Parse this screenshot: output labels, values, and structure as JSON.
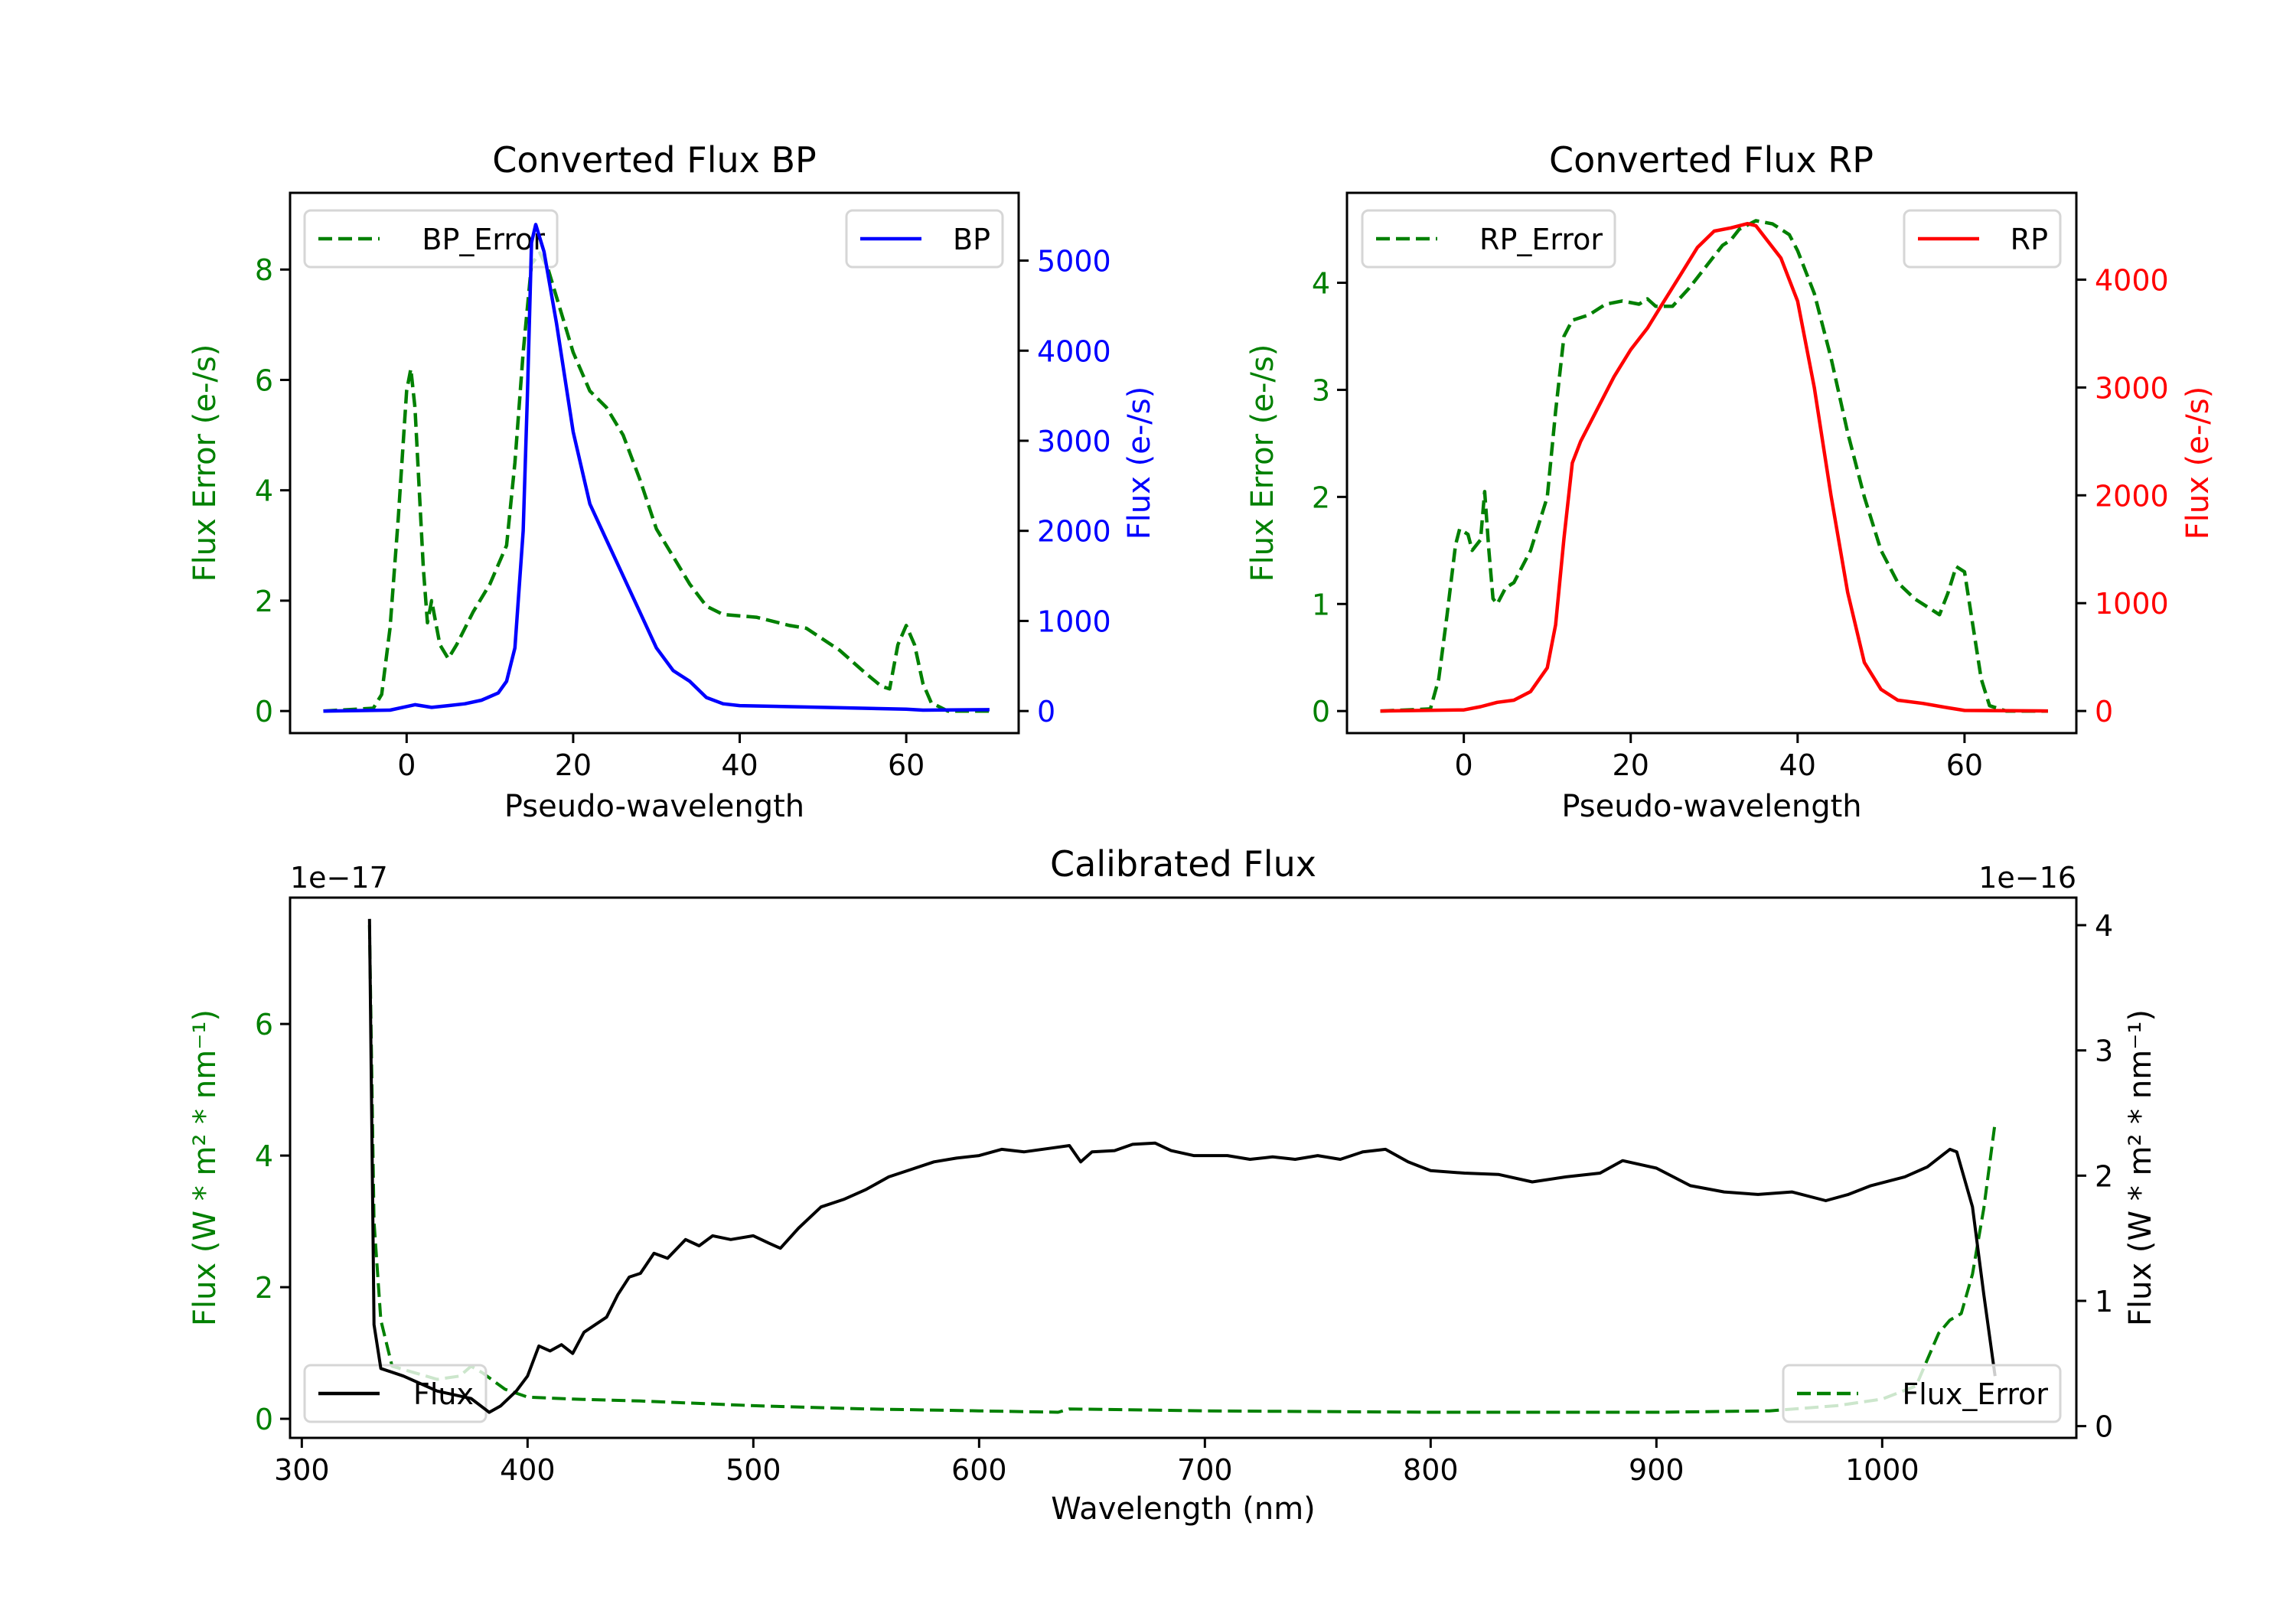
{
  "colors": {
    "green": "#008000",
    "blue": "#0000ff",
    "red": "#ff0000",
    "black": "#000000"
  },
  "chart_data": [
    {
      "type": "line",
      "title": "Converted Flux BP",
      "xlabel": "Pseudo-wavelength",
      "ylabel": "Flux Error (e-/s)",
      "ylabel_right": "Flux (e-/s)",
      "xlim": [
        -14,
        73.5
      ],
      "ylim": [
        -0.4,
        9.39
      ],
      "ylim_right": [
        -245,
        5752
      ],
      "xticks": [
        0,
        20,
        40,
        60
      ],
      "yticks": [
        0,
        2,
        4,
        6,
        8
      ],
      "yticks_right": [
        0,
        1000,
        2000,
        3000,
        4000,
        5000
      ],
      "legend_left": {
        "label": "BP_Error",
        "placement": "upper left"
      },
      "legend_right": {
        "label": "BP",
        "placement": "upper right"
      },
      "series_left": {
        "name": "BP_Error",
        "color": "#008000",
        "style": "dashed",
        "points": [
          [
            -10,
            0
          ],
          [
            -4,
            0.05
          ],
          [
            -3,
            0.3
          ],
          [
            -2,
            1.5
          ],
          [
            -1,
            3.5
          ],
          [
            0,
            5.8
          ],
          [
            0.5,
            6.2
          ],
          [
            1,
            5.5
          ],
          [
            2,
            2.6
          ],
          [
            2.5,
            1.6
          ],
          [
            3,
            2.0
          ],
          [
            4,
            1.2
          ],
          [
            5,
            0.95
          ],
          [
            6,
            1.2
          ],
          [
            8,
            1.8
          ],
          [
            10,
            2.3
          ],
          [
            12,
            3.0
          ],
          [
            13,
            4.5
          ],
          [
            14,
            6.5
          ],
          [
            15,
            8.1
          ],
          [
            16,
            8.3
          ],
          [
            17,
            8.0
          ],
          [
            18,
            7.5
          ],
          [
            20,
            6.5
          ],
          [
            22,
            5.8
          ],
          [
            24,
            5.5
          ],
          [
            26,
            5.0
          ],
          [
            28,
            4.2
          ],
          [
            30,
            3.3
          ],
          [
            32,
            2.8
          ],
          [
            34,
            2.3
          ],
          [
            36,
            1.9
          ],
          [
            38,
            1.75
          ],
          [
            42,
            1.7
          ],
          [
            46,
            1.55
          ],
          [
            48,
            1.5
          ],
          [
            52,
            1.1
          ],
          [
            55,
            0.7
          ],
          [
            57,
            0.45
          ],
          [
            58,
            0.4
          ],
          [
            59,
            1.2
          ],
          [
            60,
            1.55
          ],
          [
            61,
            1.2
          ],
          [
            62,
            0.5
          ],
          [
            63,
            0.15
          ],
          [
            65,
            0
          ],
          [
            70,
            0
          ]
        ]
      },
      "series_right": {
        "name": "BP",
        "color": "#0000ff",
        "style": "solid",
        "points": [
          [
            -10,
            0
          ],
          [
            -2,
            10
          ],
          [
            0,
            50
          ],
          [
            1,
            70
          ],
          [
            3,
            40
          ],
          [
            5,
            60
          ],
          [
            7,
            80
          ],
          [
            9,
            120
          ],
          [
            11,
            200
          ],
          [
            12,
            330
          ],
          [
            13,
            700
          ],
          [
            14,
            2000
          ],
          [
            14.5,
            3500
          ],
          [
            15,
            5200
          ],
          [
            15.5,
            5400
          ],
          [
            16.5,
            5100
          ],
          [
            18,
            4300
          ],
          [
            20,
            3100
          ],
          [
            22,
            2300
          ],
          [
            24,
            1900
          ],
          [
            26,
            1500
          ],
          [
            28,
            1100
          ],
          [
            30,
            700
          ],
          [
            32,
            450
          ],
          [
            34,
            330
          ],
          [
            36,
            150
          ],
          [
            38,
            80
          ],
          [
            40,
            60
          ],
          [
            50,
            40
          ],
          [
            60,
            20
          ],
          [
            62,
            10
          ],
          [
            70,
            15
          ]
        ]
      }
    },
    {
      "type": "line",
      "title": "Converted Flux RP",
      "xlabel": "Pseudo-wavelength",
      "ylabel": "Flux Error (e-/s)",
      "ylabel_right": "Flux (e-/s)",
      "xlim": [
        -14,
        73.4
      ],
      "ylim": [
        -0.206,
        4.84
      ],
      "ylim_right": [
        -205,
        4805
      ],
      "xticks": [
        0,
        20,
        40,
        60
      ],
      "yticks": [
        0,
        1,
        2,
        3,
        4
      ],
      "yticks_right": [
        0,
        1000,
        2000,
        3000,
        4000
      ],
      "legend_left": {
        "label": "RP_Error",
        "placement": "upper left"
      },
      "legend_right": {
        "label": "RP",
        "placement": "upper right"
      },
      "series_left": {
        "name": "RP_Error",
        "color": "#008000",
        "style": "dashed",
        "points": [
          [
            -10,
            0
          ],
          [
            -4,
            0.02
          ],
          [
            -3,
            0.3
          ],
          [
            -2,
            0.9
          ],
          [
            -1,
            1.55
          ],
          [
            -0.5,
            1.7
          ],
          [
            0.5,
            1.65
          ],
          [
            1,
            1.5
          ],
          [
            2,
            1.6
          ],
          [
            2.5,
            2.05
          ],
          [
            3,
            1.5
          ],
          [
            3.5,
            1.05
          ],
          [
            4,
            1.0
          ],
          [
            5,
            1.15
          ],
          [
            6,
            1.2
          ],
          [
            8,
            1.5
          ],
          [
            10,
            2.0
          ],
          [
            11,
            2.8
          ],
          [
            12,
            3.5
          ],
          [
            13,
            3.65
          ],
          [
            15,
            3.7
          ],
          [
            17,
            3.8
          ],
          [
            19,
            3.83
          ],
          [
            21,
            3.8
          ],
          [
            22,
            3.85
          ],
          [
            23,
            3.78
          ],
          [
            25,
            3.78
          ],
          [
            27,
            3.95
          ],
          [
            29,
            4.15
          ],
          [
            31,
            4.35
          ],
          [
            32,
            4.4
          ],
          [
            33,
            4.5
          ],
          [
            35,
            4.58
          ],
          [
            37,
            4.55
          ],
          [
            39,
            4.45
          ],
          [
            40,
            4.3
          ],
          [
            42,
            3.9
          ],
          [
            44,
            3.3
          ],
          [
            46,
            2.6
          ],
          [
            48,
            2.0
          ],
          [
            50,
            1.5
          ],
          [
            52,
            1.2
          ],
          [
            54,
            1.05
          ],
          [
            56,
            0.95
          ],
          [
            57,
            0.9
          ],
          [
            58,
            1.1
          ],
          [
            59,
            1.35
          ],
          [
            60,
            1.3
          ],
          [
            61,
            0.8
          ],
          [
            62,
            0.3
          ],
          [
            63,
            0.05
          ],
          [
            65,
            0
          ],
          [
            70,
            0
          ]
        ]
      },
      "series_right": {
        "name": "RP",
        "color": "#ff0000",
        "style": "solid",
        "points": [
          [
            -10,
            0
          ],
          [
            0,
            10
          ],
          [
            2,
            40
          ],
          [
            4,
            80
          ],
          [
            6,
            100
          ],
          [
            8,
            180
          ],
          [
            10,
            400
          ],
          [
            11,
            800
          ],
          [
            12,
            1600
          ],
          [
            13,
            2300
          ],
          [
            14,
            2500
          ],
          [
            16,
            2800
          ],
          [
            18,
            3100
          ],
          [
            20,
            3350
          ],
          [
            22,
            3550
          ],
          [
            24,
            3800
          ],
          [
            26,
            4050
          ],
          [
            28,
            4300
          ],
          [
            30,
            4450
          ],
          [
            32,
            4480
          ],
          [
            34,
            4520
          ],
          [
            35,
            4500
          ],
          [
            36,
            4400
          ],
          [
            38,
            4200
          ],
          [
            40,
            3800
          ],
          [
            42,
            3000
          ],
          [
            44,
            2000
          ],
          [
            46,
            1100
          ],
          [
            48,
            450
          ],
          [
            50,
            200
          ],
          [
            52,
            100
          ],
          [
            55,
            70
          ],
          [
            58,
            30
          ],
          [
            60,
            5
          ],
          [
            70,
            0
          ]
        ]
      }
    },
    {
      "type": "line",
      "title": "Calibrated Flux",
      "xlabel": "Wavelength (nm)",
      "ylabel": "Flux (W * m² * nm⁻¹)",
      "ylabel_right": "Flux (W * m² * nm⁻¹)",
      "offset_left": "1e−17",
      "offset_right": "1e−16",
      "xlim": [
        294.8,
        1086
      ],
      "ylim": [
        -0.29,
        7.92
      ],
      "ylim_right": [
        -0.094,
        4.22
      ],
      "xticks": [
        300,
        400,
        500,
        600,
        700,
        800,
        900,
        1000
      ],
      "yticks": [
        0,
        2,
        4,
        6
      ],
      "yticks_right": [
        0,
        1,
        2,
        3,
        4
      ],
      "legend_left": {
        "label": "Flux",
        "placement": "lower left"
      },
      "legend_right": {
        "label": "Flux_Error",
        "placement": "lower right"
      },
      "series_left": {
        "name": "Flux_Error",
        "color": "#008000",
        "style": "dashed",
        "points": [
          [
            330,
            7.5
          ],
          [
            332,
            3.0
          ],
          [
            335,
            1.5
          ],
          [
            340,
            0.8
          ],
          [
            350,
            0.7
          ],
          [
            360,
            0.6
          ],
          [
            370,
            0.65
          ],
          [
            375,
            0.8
          ],
          [
            380,
            0.7
          ],
          [
            390,
            0.45
          ],
          [
            400,
            0.33
          ],
          [
            420,
            0.3
          ],
          [
            450,
            0.27
          ],
          [
            500,
            0.2
          ],
          [
            550,
            0.15
          ],
          [
            600,
            0.12
          ],
          [
            635,
            0.1
          ],
          [
            640,
            0.15
          ],
          [
            700,
            0.12
          ],
          [
            800,
            0.1
          ],
          [
            900,
            0.1
          ],
          [
            950,
            0.12
          ],
          [
            980,
            0.2
          ],
          [
            1000,
            0.3
          ],
          [
            1015,
            0.5
          ],
          [
            1020,
            0.9
          ],
          [
            1025,
            1.3
          ],
          [
            1030,
            1.5
          ],
          [
            1035,
            1.6
          ],
          [
            1040,
            2.2
          ],
          [
            1045,
            3.2
          ],
          [
            1050,
            4.5
          ]
        ]
      },
      "series_right": {
        "name": "Flux",
        "color": "#000000",
        "style": "solid",
        "points": [
          [
            330,
            4.05
          ],
          [
            332,
            0.81
          ],
          [
            335,
            0.46
          ],
          [
            345,
            0.4
          ],
          [
            360,
            0.28
          ],
          [
            375,
            0.22
          ],
          [
            383,
            0.11
          ],
          [
            388,
            0.16
          ],
          [
            395,
            0.28
          ],
          [
            400,
            0.4
          ],
          [
            405,
            0.64
          ],
          [
            410,
            0.6
          ],
          [
            415,
            0.65
          ],
          [
            420,
            0.58
          ],
          [
            425,
            0.75
          ],
          [
            430,
            0.81
          ],
          [
            435,
            0.87
          ],
          [
            440,
            1.05
          ],
          [
            445,
            1.19
          ],
          [
            450,
            1.22
          ],
          [
            456,
            1.38
          ],
          [
            462,
            1.34
          ],
          [
            470,
            1.49
          ],
          [
            476,
            1.44
          ],
          [
            482,
            1.52
          ],
          [
            490,
            1.49
          ],
          [
            500,
            1.52
          ],
          [
            507,
            1.46
          ],
          [
            512,
            1.42
          ],
          [
            520,
            1.58
          ],
          [
            530,
            1.75
          ],
          [
            540,
            1.81
          ],
          [
            550,
            1.89
          ],
          [
            560,
            1.99
          ],
          [
            570,
            2.05
          ],
          [
            580,
            2.11
          ],
          [
            590,
            2.14
          ],
          [
            600,
            2.16
          ],
          [
            610,
            2.21
          ],
          [
            620,
            2.19
          ],
          [
            632,
            2.22
          ],
          [
            640,
            2.24
          ],
          [
            645,
            2.11
          ],
          [
            650,
            2.19
          ],
          [
            660,
            2.2
          ],
          [
            668,
            2.25
          ],
          [
            678,
            2.26
          ],
          [
            685,
            2.2
          ],
          [
            695,
            2.16
          ],
          [
            710,
            2.16
          ],
          [
            720,
            2.13
          ],
          [
            730,
            2.15
          ],
          [
            740,
            2.13
          ],
          [
            750,
            2.16
          ],
          [
            760,
            2.13
          ],
          [
            770,
            2.19
          ],
          [
            780,
            2.21
          ],
          [
            790,
            2.11
          ],
          [
            800,
            2.04
          ],
          [
            815,
            2.02
          ],
          [
            830,
            2.01
          ],
          [
            845,
            1.95
          ],
          [
            860,
            1.99
          ],
          [
            875,
            2.02
          ],
          [
            885,
            2.12
          ],
          [
            900,
            2.06
          ],
          [
            915,
            1.92
          ],
          [
            930,
            1.87
          ],
          [
            945,
            1.85
          ],
          [
            960,
            1.87
          ],
          [
            975,
            1.8
          ],
          [
            985,
            1.85
          ],
          [
            995,
            1.92
          ],
          [
            1010,
            1.99
          ],
          [
            1020,
            2.07
          ],
          [
            1030,
            2.21
          ],
          [
            1033,
            2.19
          ],
          [
            1040,
            1.75
          ],
          [
            1045,
            1.05
          ],
          [
            1050,
            0.4
          ]
        ]
      }
    }
  ]
}
